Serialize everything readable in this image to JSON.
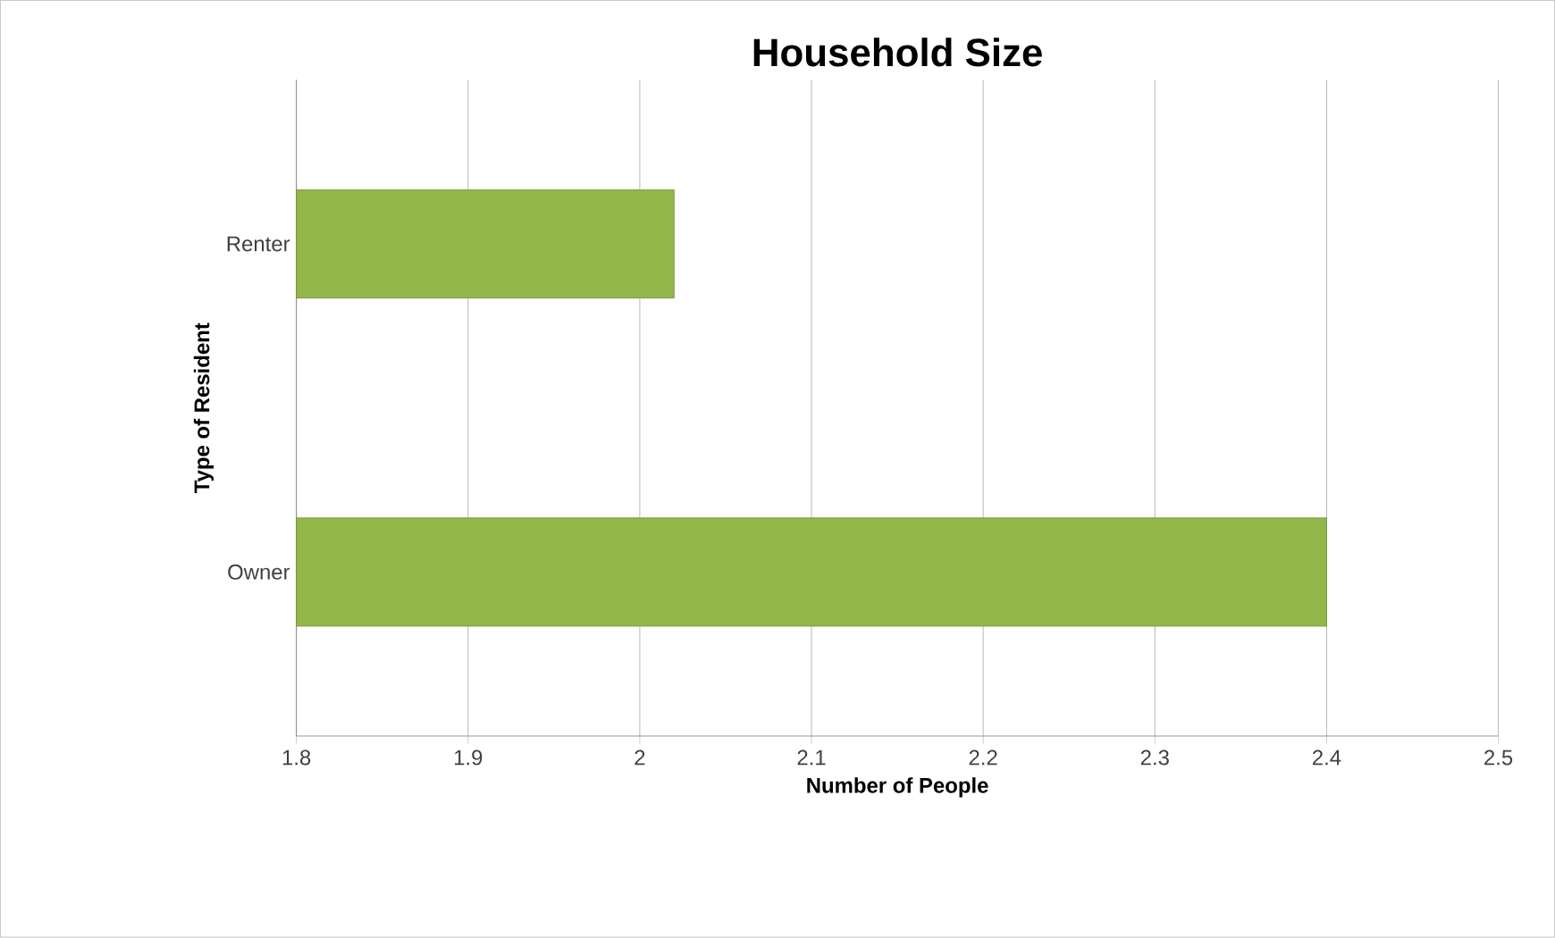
{
  "chart_data": {
    "type": "bar",
    "orientation": "horizontal",
    "title": "Household Size",
    "xlabel": "Number of People",
    "ylabel": "Type of Resident",
    "categories": [
      "Renter",
      "Owner"
    ],
    "values": [
      2.02,
      2.4
    ],
    "color": "#92b64a",
    "xlim": [
      1.8,
      2.5
    ],
    "xticks": [
      1.8,
      1.9,
      2,
      2.1,
      2.2,
      2.3,
      2.4,
      2.5
    ],
    "grid": "x"
  }
}
